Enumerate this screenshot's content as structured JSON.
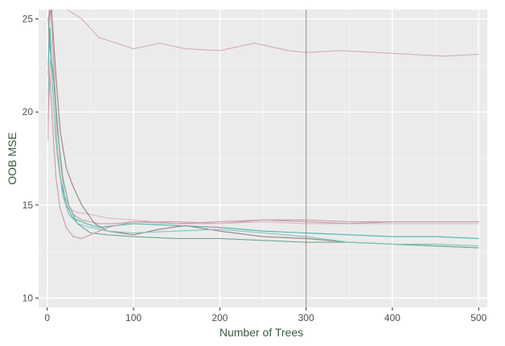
{
  "chart_data": {
    "type": "line",
    "title": "",
    "xlabel": "Number of Trees",
    "ylabel": "OOB MSE",
    "xlim": [
      -10,
      510
    ],
    "ylim": [
      9.5,
      25.5
    ],
    "x_ticks": [
      0,
      100,
      200,
      300,
      400,
      500
    ],
    "y_ticks": [
      10,
      15,
      20,
      25
    ],
    "grid": true,
    "background": "#ebebeb",
    "vline": {
      "x": 300,
      "color": "#a0826d"
    },
    "series": [
      {
        "color": "#d4aab9",
        "points": [
          [
            1,
            18.5
          ],
          [
            2,
            25.5
          ],
          [
            5,
            25.5
          ],
          [
            10,
            25.8
          ],
          [
            20,
            25.6
          ],
          [
            30,
            25.3
          ],
          [
            40,
            25.0
          ],
          [
            50,
            24.5
          ],
          [
            60,
            24.0
          ],
          [
            80,
            23.7
          ],
          [
            100,
            23.4
          ],
          [
            130,
            23.7
          ],
          [
            160,
            23.4
          ],
          [
            200,
            23.3
          ],
          [
            240,
            23.7
          ],
          [
            280,
            23.3
          ],
          [
            300,
            23.2
          ],
          [
            340,
            23.3
          ],
          [
            380,
            23.2
          ],
          [
            420,
            23.1
          ],
          [
            460,
            23.0
          ],
          [
            500,
            23.1
          ]
        ]
      },
      {
        "color": "#c8a0a8",
        "points": [
          [
            1,
            22.0
          ],
          [
            3,
            25.5
          ],
          [
            6,
            24.0
          ],
          [
            10,
            20.5
          ],
          [
            15,
            17.5
          ],
          [
            20,
            15.5
          ],
          [
            30,
            14.5
          ],
          [
            40,
            14.2
          ],
          [
            60,
            14.0
          ],
          [
            80,
            14.0
          ],
          [
            100,
            14.1
          ],
          [
            150,
            14.1
          ],
          [
            200,
            14.0
          ],
          [
            250,
            14.2
          ],
          [
            300,
            14.2
          ],
          [
            350,
            14.1
          ],
          [
            400,
            14.1
          ],
          [
            450,
            14.1
          ],
          [
            500,
            14.1
          ]
        ]
      },
      {
        "color": "#e0b5c5",
        "points": [
          [
            1,
            24.0
          ],
          [
            4,
            25.5
          ],
          [
            8,
            21.5
          ],
          [
            12,
            18.0
          ],
          [
            18,
            15.5
          ],
          [
            25,
            14.8
          ],
          [
            35,
            14.6
          ],
          [
            50,
            14.5
          ],
          [
            70,
            14.3
          ],
          [
            100,
            14.2
          ],
          [
            150,
            14.0
          ],
          [
            200,
            14.0
          ],
          [
            250,
            14.1
          ],
          [
            300,
            14.0
          ],
          [
            350,
            14.0
          ],
          [
            400,
            14.0
          ],
          [
            450,
            14.0
          ],
          [
            500,
            14.0
          ]
        ]
      },
      {
        "color": "#9a8080",
        "points": [
          [
            1,
            25.0
          ],
          [
            5,
            25.5
          ],
          [
            10,
            22.0
          ],
          [
            15,
            19.0
          ],
          [
            22,
            17.0
          ],
          [
            30,
            16.0
          ],
          [
            40,
            15.0
          ],
          [
            55,
            14.0
          ],
          [
            70,
            13.6
          ],
          [
            100,
            13.4
          ],
          [
            130,
            13.7
          ],
          [
            160,
            13.9
          ],
          [
            200,
            13.6
          ],
          [
            250,
            13.3
          ],
          [
            300,
            13.2
          ],
          [
            350,
            13.0
          ],
          [
            400,
            12.9
          ],
          [
            450,
            12.8
          ],
          [
            500,
            12.7
          ]
        ]
      },
      {
        "color": "#6fa88c",
        "points": [
          [
            1,
            25.0
          ],
          [
            3,
            23.5
          ],
          [
            7,
            22.0
          ],
          [
            12,
            19.0
          ],
          [
            18,
            16.5
          ],
          [
            25,
            15.0
          ],
          [
            35,
            14.0
          ],
          [
            50,
            13.5
          ],
          [
            70,
            13.4
          ],
          [
            100,
            13.3
          ],
          [
            150,
            13.2
          ],
          [
            200,
            13.2
          ],
          [
            250,
            13.1
          ],
          [
            300,
            13.0
          ],
          [
            350,
            13.0
          ],
          [
            400,
            12.9
          ],
          [
            450,
            12.8
          ],
          [
            500,
            12.7
          ]
        ]
      },
      {
        "color": "#48b6ad",
        "points": [
          [
            1,
            22.5
          ],
          [
            3,
            24.5
          ],
          [
            6,
            21.5
          ],
          [
            10,
            18.5
          ],
          [
            15,
            16.5
          ],
          [
            22,
            15.0
          ],
          [
            30,
            14.3
          ],
          [
            45,
            14.0
          ],
          [
            60,
            13.8
          ],
          [
            80,
            13.9
          ],
          [
            100,
            14.0
          ],
          [
            150,
            13.9
          ],
          [
            200,
            13.8
          ],
          [
            250,
            13.6
          ],
          [
            300,
            13.5
          ],
          [
            350,
            13.4
          ],
          [
            400,
            13.3
          ],
          [
            450,
            13.3
          ],
          [
            500,
            13.2
          ]
        ]
      },
      {
        "color": "#7fc4c0",
        "points": [
          [
            1,
            21.0
          ],
          [
            4,
            23.0
          ],
          [
            8,
            20.0
          ],
          [
            12,
            17.5
          ],
          [
            18,
            15.5
          ],
          [
            25,
            14.5
          ],
          [
            35,
            14.0
          ],
          [
            50,
            13.8
          ],
          [
            70,
            13.6
          ],
          [
            100,
            13.5
          ],
          [
            150,
            13.6
          ],
          [
            200,
            13.7
          ],
          [
            250,
            13.5
          ],
          [
            300,
            13.3
          ],
          [
            350,
            13.0
          ],
          [
            400,
            12.9
          ],
          [
            450,
            12.9
          ],
          [
            500,
            12.8
          ]
        ]
      },
      {
        "color": "#c89aa8",
        "points": [
          [
            1,
            19.5
          ],
          [
            3,
            22.0
          ],
          [
            6,
            19.5
          ],
          [
            10,
            16.5
          ],
          [
            15,
            14.8
          ],
          [
            22,
            13.8
          ],
          [
            30,
            13.3
          ],
          [
            40,
            13.2
          ],
          [
            55,
            13.5
          ],
          [
            70,
            13.8
          ],
          [
            100,
            14.1
          ],
          [
            150,
            14.0
          ],
          [
            200,
            14.1
          ],
          [
            250,
            14.2
          ],
          [
            300,
            14.1
          ],
          [
            350,
            14.0
          ],
          [
            400,
            14.1
          ],
          [
            450,
            14.1
          ],
          [
            500,
            14.1
          ]
        ]
      }
    ]
  }
}
